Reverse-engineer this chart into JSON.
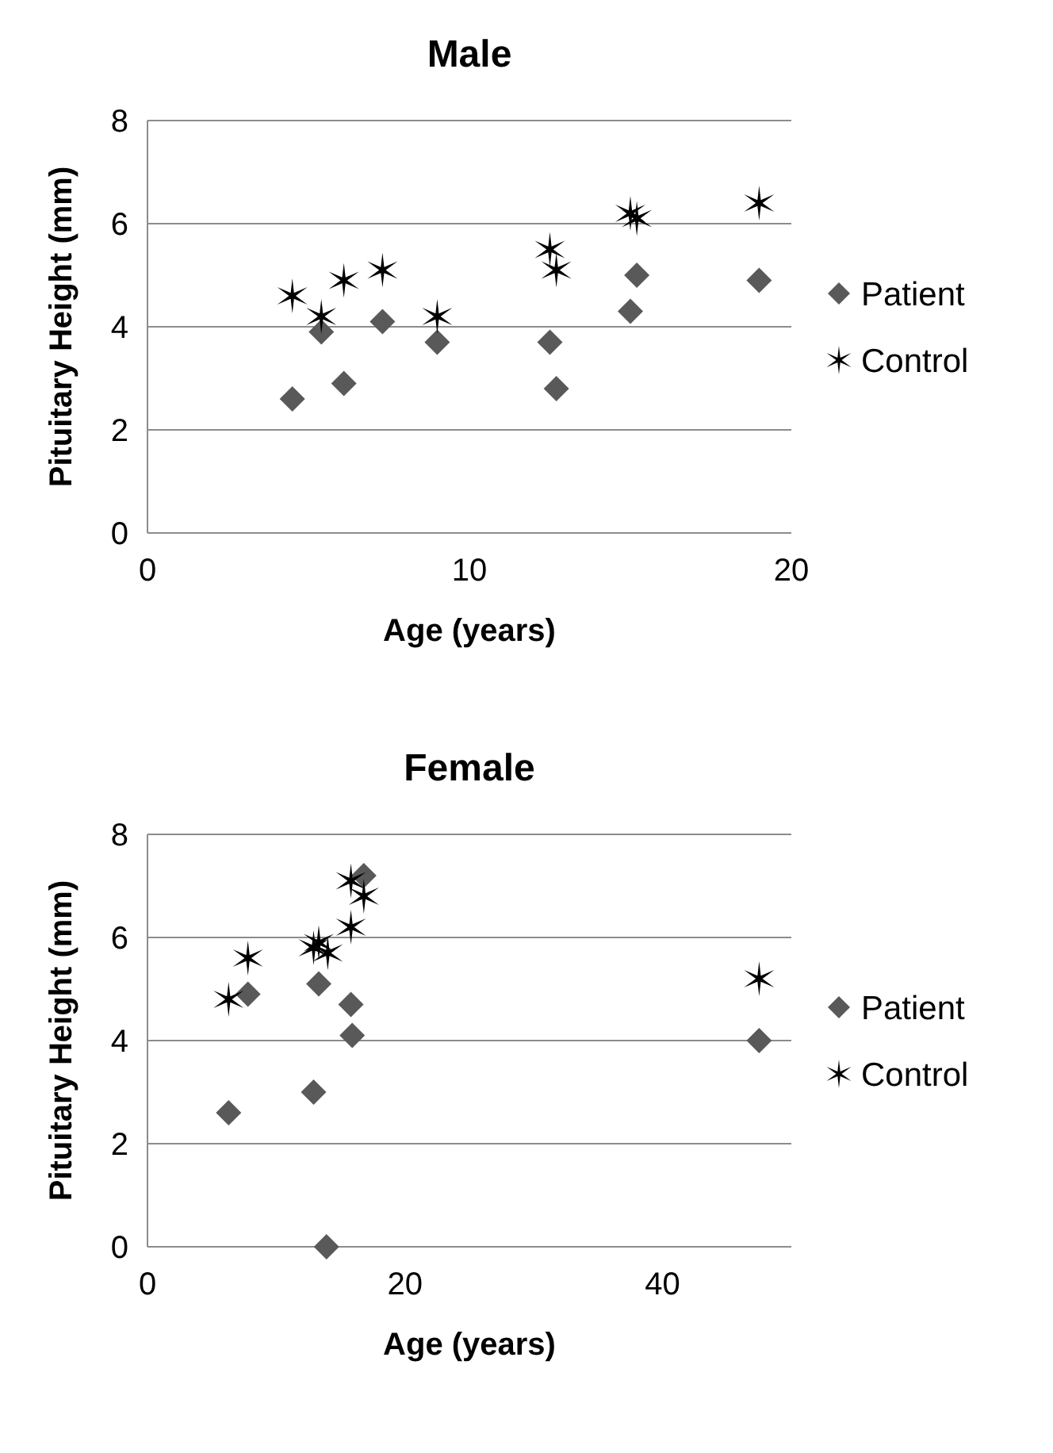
{
  "chart_data": [
    {
      "type": "scatter",
      "title": "Male",
      "xlabel": "Age (years)",
      "ylabel": "Pituitary Height  (mm)",
      "xlim": [
        0,
        20
      ],
      "xticks": [
        0,
        10,
        20
      ],
      "ylim": [
        0,
        8
      ],
      "yticks": [
        0,
        2,
        4,
        6,
        8
      ],
      "grid": "y",
      "legend": "right",
      "series": [
        {
          "name": "Patient",
          "color": "#595959",
          "marker": "diamond",
          "x": [
            4.5,
            5.4,
            6.1,
            7.3,
            9.0,
            12.5,
            12.7,
            15.0,
            15.2,
            19.0
          ],
          "values": [
            2.6,
            3.9,
            2.9,
            4.1,
            3.7,
            3.7,
            2.8,
            4.3,
            5.0,
            4.9
          ]
        },
        {
          "name": "Control",
          "color": "#000000",
          "marker": "cross",
          "x": [
            4.5,
            5.4,
            6.1,
            7.3,
            9.0,
            12.5,
            12.7,
            15.0,
            15.2,
            19.0
          ],
          "values": [
            4.6,
            4.2,
            4.9,
            5.1,
            4.2,
            5.5,
            5.1,
            6.2,
            6.1,
            6.4
          ]
        }
      ]
    },
    {
      "type": "scatter",
      "title": "Female",
      "xlabel": "Age (years)",
      "ylabel": "Pituitary Height (mm)",
      "xlim": [
        0,
        50
      ],
      "xticks": [
        0,
        20,
        40
      ],
      "ylim": [
        0,
        8
      ],
      "yticks": [
        0,
        2,
        4,
        6,
        8
      ],
      "grid": "y",
      "legend": "right",
      "series": [
        {
          "name": "Patient",
          "color": "#595959",
          "marker": "diamond",
          "x": [
            6.3,
            7.8,
            12.9,
            13.3,
            13.9,
            15.8,
            15.9,
            16.8,
            47.5
          ],
          "values": [
            2.6,
            4.9,
            3.0,
            5.1,
            0.0,
            4.7,
            4.1,
            7.2,
            4.0
          ]
        },
        {
          "name": "Control",
          "color": "#000000",
          "marker": "cross",
          "x": [
            6.3,
            7.8,
            12.9,
            13.3,
            14.0,
            15.8,
            15.8,
            16.8,
            47.5
          ],
          "values": [
            4.8,
            5.6,
            5.8,
            5.9,
            5.7,
            6.2,
            7.1,
            6.8,
            5.2
          ]
        }
      ]
    }
  ]
}
